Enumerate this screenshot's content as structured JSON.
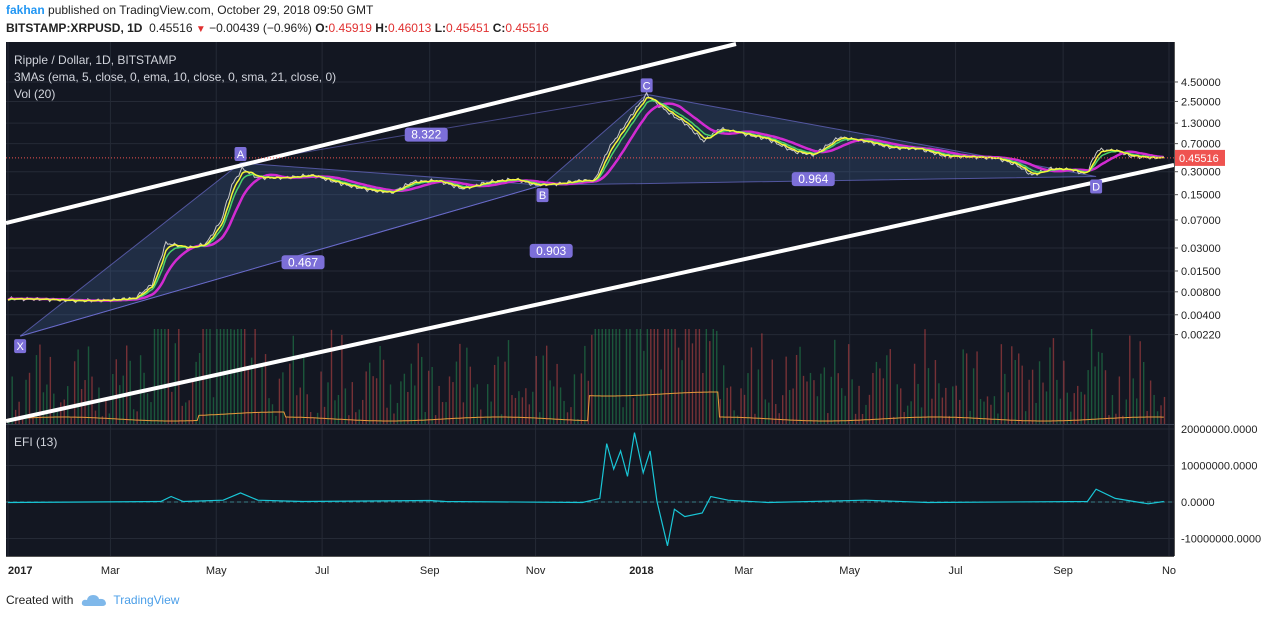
{
  "header": {
    "user": "fakhan",
    "published": "published on TradingView.com, October 29, 2018 09:50 GMT",
    "symbol": "BITSTAMP:XRPUSD, 1D",
    "last": "0.45516",
    "change": "−0.00439 (−0.96%)",
    "o_label": "O:",
    "o": "0.45919",
    "h_label": "H:",
    "h": "0.46013",
    "l_label": "L:",
    "l": "0.45451",
    "c_label": "C:",
    "c": "0.45516"
  },
  "legend": {
    "title": "Ripple / Dollar, 1D, BITSTAMP",
    "mas": "3MAs (ema, 5, close, 0, ema, 10, close, 0, sma, 21, close, 0)",
    "vol": "Vol (20)",
    "efi": "EFI (13)"
  },
  "footer": {
    "created_with": "Created with",
    "brand": "TradingView"
  },
  "colors": {
    "bg": "#131722",
    "grid": "#252a36",
    "price": "#e0e0e0",
    "ema5": "#f6f63a",
    "ema10": "#49d36a",
    "sma21": "#d22bd2",
    "efi": "#19c6d6",
    "price_label": "#ef5350",
    "pattern": "#7c6fd8"
  },
  "chart_data": {
    "type": "line",
    "x_tick_labels": [
      "2017",
      "Mar",
      "May",
      "Jul",
      "Sep",
      "Nov",
      "2018",
      "Mar",
      "May",
      "Jul",
      "Sep",
      "No"
    ],
    "y_scale": "log",
    "y_tick_labels": [
      "4.50000",
      "2.50000",
      "1.30000",
      "0.70000",
      "0.30000",
      "0.15000",
      "0.07000",
      "0.03000",
      "0.01500",
      "0.00800",
      "0.00400",
      "0.00220"
    ],
    "last_price_label": "0.45516",
    "pattern_points": [
      {
        "label": "X",
        "date": "2017-01-08",
        "price": 0.0021
      },
      {
        "label": "A",
        "date": "2017-05-15",
        "price": 0.39
      },
      {
        "label": "B",
        "date": "2017-11-05",
        "price": 0.2
      },
      {
        "label": "C",
        "date": "2018-01-04",
        "price": 3.1
      },
      {
        "label": "D",
        "date": "2018-09-20",
        "price": 0.26
      }
    ],
    "ratio_labels": [
      {
        "text": "0.467",
        "date": "2017-06-20",
        "price": 0.0195
      },
      {
        "text": "8.322",
        "date": "2017-08-30",
        "price": 0.92
      },
      {
        "text": "0.964",
        "date": "2018-04-10",
        "price": 0.24
      },
      {
        "text": "0.903",
        "date": "2017-11-10",
        "price": 0.0275
      }
    ],
    "series": [
      {
        "values": [
          [
            "2017-01-01",
            0.0065
          ],
          [
            "2017-01-20",
            0.0064
          ],
          [
            "2017-02-10",
            0.0061
          ],
          [
            "2017-02-28",
            0.0062
          ],
          [
            "2017-03-15",
            0.0066
          ],
          [
            "2017-03-25",
            0.01
          ],
          [
            "2017-04-02",
            0.035
          ],
          [
            "2017-04-15",
            0.03
          ],
          [
            "2017-04-25",
            0.034
          ],
          [
            "2017-05-04",
            0.07
          ],
          [
            "2017-05-10",
            0.2
          ],
          [
            "2017-05-16",
            0.33
          ],
          [
            "2017-05-25",
            0.25
          ],
          [
            "2017-06-10",
            0.25
          ],
          [
            "2017-06-25",
            0.27
          ],
          [
            "2017-07-15",
            0.2
          ],
          [
            "2017-07-30",
            0.17
          ],
          [
            "2017-08-10",
            0.16
          ],
          [
            "2017-08-22",
            0.22
          ],
          [
            "2017-09-05",
            0.23
          ],
          [
            "2017-09-20",
            0.18
          ],
          [
            "2017-10-05",
            0.22
          ],
          [
            "2017-10-20",
            0.24
          ],
          [
            "2017-11-01",
            0.2
          ],
          [
            "2017-11-15",
            0.21
          ],
          [
            "2017-11-27",
            0.23
          ],
          [
            "2017-12-05",
            0.23
          ],
          [
            "2017-12-13",
            0.6
          ],
          [
            "2017-12-21",
            1.1
          ],
          [
            "2017-12-28",
            1.9
          ],
          [
            "2018-01-04",
            3.1
          ],
          [
            "2018-01-10",
            2.3
          ],
          [
            "2018-01-18",
            1.7
          ],
          [
            "2018-01-26",
            1.3
          ],
          [
            "2018-02-06",
            0.75
          ],
          [
            "2018-02-15",
            1.1
          ],
          [
            "2018-02-28",
            0.95
          ],
          [
            "2018-03-15",
            0.8
          ],
          [
            "2018-03-30",
            0.55
          ],
          [
            "2018-04-10",
            0.5
          ],
          [
            "2018-04-25",
            0.85
          ],
          [
            "2018-05-10",
            0.75
          ],
          [
            "2018-05-25",
            0.62
          ],
          [
            "2018-06-10",
            0.6
          ],
          [
            "2018-06-25",
            0.48
          ],
          [
            "2018-07-10",
            0.47
          ],
          [
            "2018-07-25",
            0.45
          ],
          [
            "2018-08-05",
            0.37
          ],
          [
            "2018-08-14",
            0.27
          ],
          [
            "2018-08-25",
            0.33
          ],
          [
            "2018-09-05",
            0.32
          ],
          [
            "2018-09-14",
            0.28
          ],
          [
            "2018-09-21",
            0.58
          ],
          [
            "2018-10-01",
            0.57
          ],
          [
            "2018-10-10",
            0.48
          ],
          [
            "2018-10-20",
            0.46
          ],
          [
            "2018-10-29",
            0.455
          ]
        ]
      }
    ],
    "efi_y_tick_labels": [
      "20000000.0000",
      "10000000.0000",
      "0.0000",
      "-10000000.0000"
    ],
    "efi_values": [
      [
        "2017-01-01",
        0
      ],
      [
        "2017-03-30",
        0
      ],
      [
        "2017-04-05",
        1500000
      ],
      [
        "2017-04-12",
        0
      ],
      [
        "2017-05-05",
        500000
      ],
      [
        "2017-05-15",
        2500000
      ],
      [
        "2017-05-25",
        500000
      ],
      [
        "2017-06-20",
        0
      ],
      [
        "2017-09-01",
        400000
      ],
      [
        "2017-09-10",
        0
      ],
      [
        "2017-11-28",
        0
      ],
      [
        "2017-12-08",
        1000000
      ],
      [
        "2017-12-12",
        16000000
      ],
      [
        "2017-12-16",
        9000000
      ],
      [
        "2017-12-20",
        14000000
      ],
      [
        "2017-12-24",
        7000000
      ],
      [
        "2017-12-28",
        19000000
      ],
      [
        "2018-01-02",
        8000000
      ],
      [
        "2018-01-06",
        14000000
      ],
      [
        "2018-01-10",
        0
      ],
      [
        "2018-01-16",
        -12000000
      ],
      [
        "2018-01-20",
        -2000000
      ],
      [
        "2018-01-26",
        -4000000
      ],
      [
        "2018-02-05",
        -3000000
      ],
      [
        "2018-02-10",
        1500000
      ],
      [
        "2018-02-20",
        500000
      ],
      [
        "2018-03-15",
        0
      ],
      [
        "2018-05-10",
        500000
      ],
      [
        "2018-06-15",
        0
      ],
      [
        "2018-09-15",
        0
      ],
      [
        "2018-09-20",
        3500000
      ],
      [
        "2018-10-01",
        1000000
      ],
      [
        "2018-10-20",
        -500000
      ],
      [
        "2018-10-29",
        0
      ]
    ],
    "grid": true
  }
}
